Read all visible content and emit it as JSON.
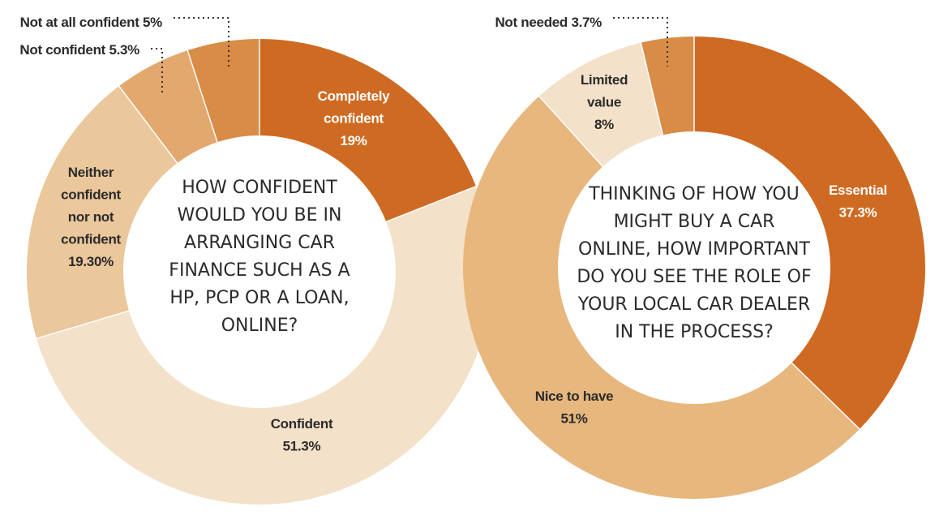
{
  "chart_data": [
    {
      "type": "pie",
      "donut": true,
      "title": "HOW CONFIDENT WOULD YOU BE IN ARRANGING CAR FINANCE SUCH AS A HP, PCP OR A LOAN, ONLINE?",
      "title_lines": [
        "HOW CONFIDENT",
        "WOULD YOU BE IN",
        "ARRANGING CAR",
        "FINANCE SUCH AS A",
        "HP, PCP OR A LOAN,",
        "ONLINE?"
      ],
      "slices": [
        {
          "label": "Completely confident",
          "value": 19,
          "value_text": "19%",
          "color": "#cf6a22",
          "label_lines": [
            "Completely",
            "confident",
            "19%"
          ],
          "light": true
        },
        {
          "label": "Confident",
          "value": 51.3,
          "value_text": "51.3%",
          "color": "#f4e1c9",
          "label_lines": [
            "Confident",
            "51.3%"
          ],
          "light": false
        },
        {
          "label": "Neither confident nor not confident",
          "value": 19.3,
          "value_text": "19.30%",
          "color": "#ebc79c",
          "label_lines": [
            "Neither",
            "confident",
            "nor not",
            "confident",
            "19.30%"
          ],
          "light": false
        },
        {
          "label": "Not confident",
          "value": 5.3,
          "value_text": "5.3%",
          "color": "#e2a86e",
          "external_label": "Not confident 5.3%"
        },
        {
          "label": "Not at all confident",
          "value": 5,
          "value_text": "5%",
          "color": "#d98c46",
          "external_label": "Not at all confident 5%"
        }
      ]
    },
    {
      "type": "pie",
      "donut": true,
      "title": "THINKING OF HOW YOU MIGHT BUY A CAR ONLINE, HOW IMPORTANT DO YOU SEE THE ROLE OF YOUR LOCAL CAR DEALER IN THE PROCESS?",
      "title_lines": [
        "THINKING OF HOW YOU",
        "MIGHT BUY A CAR",
        "ONLINE, HOW IMPORTANT",
        "DO YOU SEE THE ROLE OF",
        "YOUR LOCAL CAR DEALER",
        "IN THE PROCESS?"
      ],
      "slices": [
        {
          "label": "Essential",
          "value": 37.3,
          "value_text": "37.3%",
          "color": "#cf6a22",
          "label_lines": [
            "Essential",
            "37.3%"
          ],
          "light": true
        },
        {
          "label": "Nice to have",
          "value": 51,
          "value_text": "51%",
          "color": "#e7b77e",
          "label_lines": [
            "Nice to have",
            "51%"
          ],
          "light": false
        },
        {
          "label": "Limited value",
          "value": 8,
          "value_text": "8%",
          "color": "#f4e1c9",
          "label_lines": [
            "Limited",
            "value",
            "8%"
          ],
          "light": false
        },
        {
          "label": "Not needed",
          "value": 3.7,
          "value_text": "3.7%",
          "color": "#d98c46",
          "external_label": "Not needed 3.7%"
        }
      ]
    }
  ]
}
